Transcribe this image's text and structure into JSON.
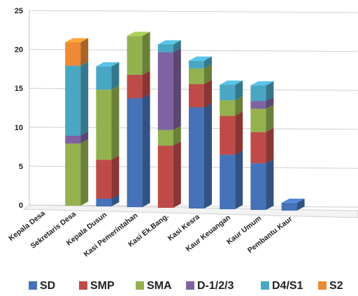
{
  "chart_data": {
    "type": "bar",
    "stacked": true,
    "style": "3d",
    "categories": [
      "Kepala Desa",
      "Sekretaris Desa",
      "Kepala Dusun",
      "Kasi Pemerintahan",
      "Kasi Ek.Bang.",
      "Kasi Kesra",
      "Kaur Keuangan",
      "Kaur Umum",
      "Pembantu Kaur"
    ],
    "series": [
      {
        "name": "SD",
        "color": "#4572B8",
        "values": [
          0,
          0,
          1,
          14,
          0,
          13,
          7,
          6,
          1
        ]
      },
      {
        "name": "SMP",
        "color": "#BE4B48",
        "values": [
          0,
          0,
          5,
          3,
          8,
          3,
          5,
          4,
          0
        ]
      },
      {
        "name": "SMA",
        "color": "#93B24F",
        "values": [
          0,
          8,
          9,
          5,
          2,
          2,
          2,
          3,
          0
        ]
      },
      {
        "name": "D-1/2/3",
        "color": "#7E62A1",
        "values": [
          0,
          1,
          0,
          0,
          10,
          0,
          0,
          1,
          0
        ]
      },
      {
        "name": "D4/S1",
        "color": "#4AA7C4",
        "values": [
          0,
          9,
          3,
          0,
          1,
          1,
          2,
          2,
          0
        ]
      },
      {
        "name": "S2",
        "color": "#EE8A33",
        "values": [
          0,
          3,
          0,
          0,
          0,
          0,
          0,
          0,
          0
        ]
      }
    ],
    "yticks": [
      "0",
      "5",
      "10",
      "15",
      "20",
      "25"
    ],
    "ylim": [
      0,
      25
    ],
    "grid": true,
    "legend_position": "bottom"
  }
}
